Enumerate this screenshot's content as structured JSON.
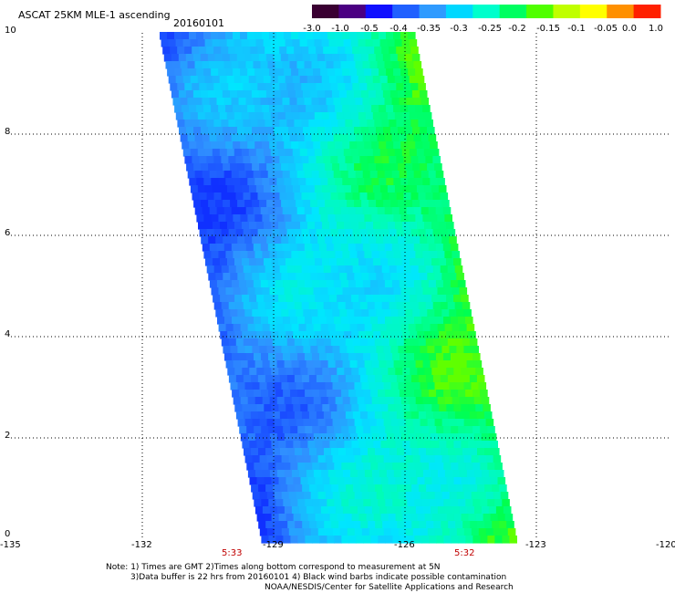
{
  "header": {
    "title": "ASCAT 25KM MLE-1 ascending",
    "date": "20160101"
  },
  "colorbar": {
    "ticks": [
      "-3.0",
      "-1.0",
      "-0.5",
      "-0.4",
      "-0.35",
      "-0.3",
      "-0.25",
      "-0.2",
      "-0.15",
      "-0.1",
      "-0.05",
      "0.0",
      "1.0"
    ],
    "colors": [
      "#3a0032",
      "#4b0082",
      "#1010ff",
      "#2060ff",
      "#2f9bff",
      "#00d8ff",
      "#00ffcc",
      "#00ff60",
      "#50ff00",
      "#c0ff00",
      "#ffff00",
      "#ff9000",
      "#ff2000"
    ]
  },
  "map": {
    "y_labels": [
      "10",
      "8",
      "6",
      "4",
      "2",
      "0"
    ],
    "x_labels": [
      "-135",
      "-132",
      "-129",
      "-126",
      "-123",
      "-120"
    ],
    "time_labels": [
      "5:33",
      "5:32"
    ]
  },
  "notes": {
    "line1": "Note: 1) Times are GMT 2)Times along bottom correspond to measurement at 5N",
    "line2": "3)Data buffer is 22 hrs from 20160101 4) Black wind barbs indicate possible contamination",
    "line3": "NOAA/NESDIS/Center for Satellite Applications and Research"
  }
}
